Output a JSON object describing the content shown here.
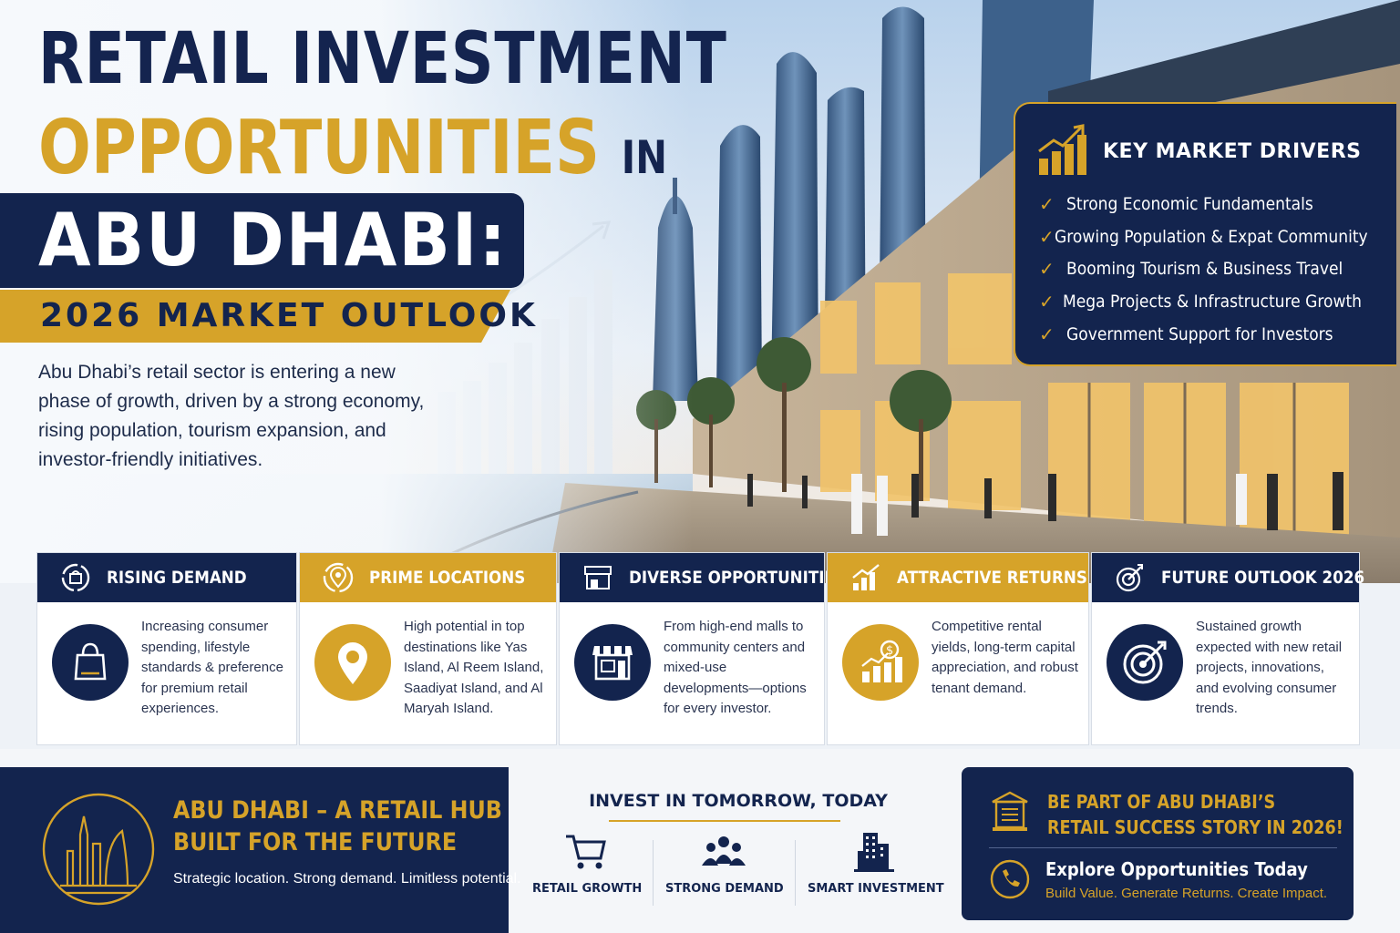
{
  "colors": {
    "navy": "#13244e",
    "gold": "#d6a329",
    "text": "#1d2b4a",
    "white": "#ffffff"
  },
  "hero": {
    "title_line1": "RETAIL INVESTMENT",
    "title_line2": "OPPORTUNITIES",
    "title_line2_suffix": "IN",
    "title_line3": "ABU DHABI:",
    "subtitle": "2026 MARKET OUTLOOK",
    "intro": "Abu Dhabi’s retail sector is entering a new phase of growth, driven by a strong economy, rising population, tourism expansion, and investor-friendly initiatives."
  },
  "drivers": {
    "icon": "growth-chart-icon",
    "title": "KEY MARKET DRIVERS",
    "items": [
      "Strong Economic Fundamentals",
      "Growing Population & Expat Community",
      "Booming Tourism & Business Travel",
      "Mega Projects & Infrastructure Growth",
      "Government Support for Investors"
    ]
  },
  "cards": [
    {
      "title": "RISING DEMAND",
      "icon": "shopping-bag-icon",
      "text": "Increasing consumer spending, lifestyle standards & preference for premium retail experiences."
    },
    {
      "title": "PRIME LOCATIONS",
      "icon": "location-pin-icon",
      "text": "High potential in top destinations like Yas Island, Al Reem Island, Saadiyat Island, and Al Maryah Island."
    },
    {
      "title": "DIVERSE OPPORTUNITIES",
      "icon": "storefront-icon",
      "text": "From high-end malls to community centers and mixed-use developments—options for every investor."
    },
    {
      "title": "ATTRACTIVE RETURNS",
      "icon": "returns-chart-icon",
      "text": "Competitive rental yields, long-term capital appreciation, and robust tenant demand."
    },
    {
      "title": "FUTURE OUTLOOK 2026",
      "icon": "target-icon",
      "text": "Sustained growth expected with new retail projects, innovations, and evolving consumer trends."
    }
  ],
  "hub": {
    "title_line1": "ABU DHABI – A RETAIL HUB",
    "title_line2": "BUILT FOR THE FUTURE",
    "tagline": "Strategic location. Strong demand. Limitless potential."
  },
  "invest": {
    "title": "INVEST IN TOMORROW, TODAY",
    "items": [
      {
        "label": "RETAIL GROWTH",
        "icon": "shopping-cart-icon"
      },
      {
        "label": "STRONG DEMAND",
        "icon": "people-group-icon"
      },
      {
        "label": "SMART INVESTMENT",
        "icon": "building-icon"
      }
    ]
  },
  "cta": {
    "line1": "BE PART OF ABU DHABI’S",
    "line2": "RETAIL SUCCESS STORY IN 2026!",
    "explore": "Explore Opportunities Today",
    "slogan": "Build Value. Generate Returns. Create Impact."
  }
}
